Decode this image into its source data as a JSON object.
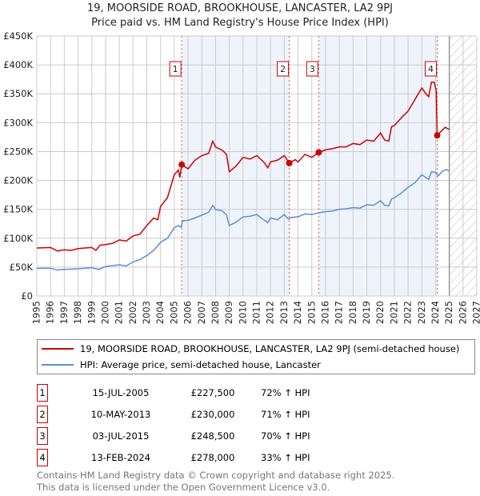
{
  "chart_data": {
    "type": "line",
    "title": "19, MOORSIDE ROAD, BROOKHOUSE, LANCASTER, LA2 9PJ",
    "subtitle": "Price paid vs. HM Land Registry's House Price Index (HPI)",
    "xlim": [
      1995,
      2027
    ],
    "ylim": [
      0,
      450000
    ],
    "x_ticks": [
      "1995",
      "1996",
      "1997",
      "1998",
      "1999",
      "2000",
      "2001",
      "2002",
      "2003",
      "2004",
      "2005",
      "2006",
      "2007",
      "2008",
      "2009",
      "2010",
      "2011",
      "2012",
      "2013",
      "2014",
      "2015",
      "2016",
      "2017",
      "2018",
      "2019",
      "2020",
      "2021",
      "2022",
      "2023",
      "2024",
      "2025",
      "2026",
      "2027"
    ],
    "y_ticks": [
      {
        "v": 0,
        "label": "£0"
      },
      {
        "v": 50000,
        "label": "£50K"
      },
      {
        "v": 100000,
        "label": "£100K"
      },
      {
        "v": 150000,
        "label": "£150K"
      },
      {
        "v": 200000,
        "label": "£200K"
      },
      {
        "v": 250000,
        "label": "£250K"
      },
      {
        "v": 300000,
        "label": "£300K"
      },
      {
        "v": 350000,
        "label": "£350K"
      },
      {
        "v": 400000,
        "label": "£400K"
      },
      {
        "v": 450000,
        "label": "£450K"
      }
    ],
    "grid": true,
    "forecast_hatch_from": 2025,
    "series": [
      {
        "name": "19, MOORSIDE ROAD, BROOKHOUSE, LANCASTER, LA2 9PJ (semi-detached house)",
        "color": "#cc0000",
        "x": [
          1995,
          1996,
          1996.5,
          1997,
          1997.5,
          1998,
          1998.5,
          1999,
          1999.3,
          1999.6,
          2000,
          2000.5,
          2001,
          2001.5,
          2002,
          2002.5,
          2003,
          2003.5,
          2003.8,
          2004,
          2004.5,
          2005,
          2005.3,
          2005.4,
          2005.54,
          2006,
          2006.5,
          2007,
          2007.5,
          2007.8,
          2008,
          2008.5,
          2008.8,
          2009,
          2009.5,
          2010,
          2010.5,
          2011,
          2011.5,
          2011.8,
          2012,
          2012.5,
          2013,
          2013.36,
          2013.8,
          2014,
          2014.5,
          2015,
          2015.5,
          2016,
          2016.5,
          2017,
          2017.5,
          2018,
          2018.5,
          2019,
          2019.5,
          2020,
          2020.3,
          2020.6,
          2020.8,
          2021,
          2021.5,
          2022,
          2022.5,
          2023,
          2023.3,
          2023.5,
          2023.7,
          2023.9,
          2024.05,
          2024.12,
          2024.4,
          2024.7,
          2025
        ],
        "y": [
          83000,
          84000,
          78000,
          80000,
          79000,
          82000,
          83000,
          84000,
          79000,
          88000,
          89000,
          91000,
          97000,
          95000,
          104000,
          107000,
          122000,
          135000,
          132000,
          155000,
          170000,
          210000,
          218000,
          205000,
          227500,
          220000,
          235000,
          243000,
          247000,
          268000,
          258000,
          252000,
          245000,
          215000,
          225000,
          240000,
          237000,
          243000,
          232000,
          222000,
          232000,
          235000,
          243000,
          230000,
          236000,
          232000,
          245000,
          240000,
          248500,
          253000,
          255000,
          258000,
          258000,
          264000,
          262000,
          270000,
          268000,
          282000,
          270000,
          268000,
          293000,
          295000,
          308000,
          320000,
          340000,
          360000,
          350000,
          345000,
          370000,
          370000,
          355000,
          278000,
          285000,
          292000,
          288000
        ]
      },
      {
        "name": "HPI: Average price, semi-detached house, Lancaster",
        "color": "#5b8fd4",
        "x": [
          1995,
          1996,
          1996.5,
          1997,
          1998,
          1999,
          1999.5,
          2000,
          2001,
          2001.5,
          2002,
          2002.5,
          2003,
          2003.5,
          2004,
          2004.5,
          2005,
          2005.3,
          2005.5,
          2005.6,
          2006,
          2006.5,
          2007,
          2007.5,
          2007.8,
          2008,
          2008.5,
          2008.8,
          2009,
          2009.5,
          2010,
          2010.5,
          2011,
          2011.5,
          2011.8,
          2012,
          2012.5,
          2013,
          2013.3,
          2013.5,
          2014,
          2014.5,
          2015,
          2015.5,
          2016,
          2016.5,
          2017,
          2017.5,
          2018,
          2018.5,
          2019,
          2019.5,
          2020,
          2020.3,
          2020.6,
          2020.8,
          2021,
          2021.5,
          2022,
          2022.5,
          2023,
          2023.3,
          2023.5,
          2023.7,
          2024,
          2024.2,
          2024.5,
          2024.8,
          2025
        ],
        "y": [
          48000,
          48000,
          45000,
          46000,
          47000,
          49000,
          46000,
          51000,
          54000,
          52000,
          59000,
          63000,
          70000,
          79000,
          93000,
          100000,
          118000,
          122000,
          119000,
          130000,
          131000,
          135000,
          140000,
          145000,
          157000,
          150000,
          147000,
          140000,
          122000,
          128000,
          137000,
          138000,
          141000,
          132000,
          127000,
          135000,
          132000,
          141000,
          133000,
          136000,
          137000,
          142000,
          141000,
          144000,
          146000,
          147000,
          150000,
          151000,
          153000,
          152000,
          158000,
          157000,
          165000,
          157000,
          156000,
          168000,
          170000,
          178000,
          188000,
          196000,
          210000,
          205000,
          202000,
          215000,
          214000,
          208000,
          216000,
          219000,
          216000
        ]
      }
    ],
    "sales": [
      {
        "n": "1",
        "x": 2005.54,
        "price": 227500,
        "date": "15-JUL-2005",
        "price_label": "£227,500",
        "hpi": "72% ↑ HPI"
      },
      {
        "n": "2",
        "x": 2013.36,
        "price": 230000,
        "date": "10-MAY-2013",
        "price_label": "£230,000",
        "hpi": "71% ↑ HPI"
      },
      {
        "n": "3",
        "x": 2015.5,
        "price": 248500,
        "date": "03-JUL-2015",
        "price_label": "£248,500",
        "hpi": "70% ↑ HPI"
      },
      {
        "n": "4",
        "x": 2024.12,
        "price": 278000,
        "date": "13-FEB-2024",
        "price_label": "£278,000",
        "hpi": "33% ↑ HPI"
      }
    ]
  },
  "footer": {
    "line1": "Contains HM Land Registry data © Crown copyright and database right 2025.",
    "line2": "This data is licensed under the Open Government Licence v3.0."
  }
}
